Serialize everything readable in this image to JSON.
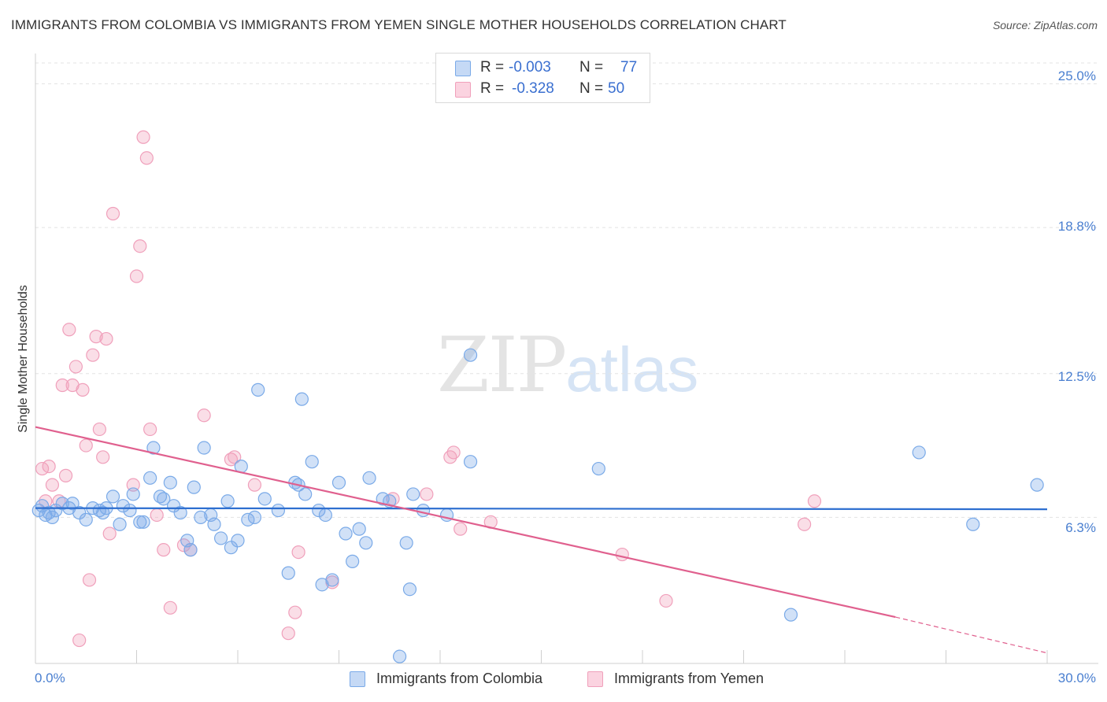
{
  "header": {
    "title": "IMMIGRANTS FROM COLOMBIA VS IMMIGRANTS FROM YEMEN SINGLE MOTHER HOUSEHOLDS CORRELATION CHART",
    "source": "Source: ZipAtlas.com"
  },
  "watermark": {
    "zip": "ZIP",
    "atlas": "atlas"
  },
  "stats": {
    "colombia": {
      "r_label": "R =",
      "r_value": "-0.003",
      "n_label": "N =",
      "n_value": "77"
    },
    "yemen": {
      "r_label": "R =",
      "r_value": "-0.328",
      "n_label": "N =",
      "n_value": "50"
    }
  },
  "colors": {
    "colombia": "#7aaae8",
    "yemen": "#f0a0bb",
    "colombia_line": "#2e6fd0",
    "yemen_line": "#e0608e",
    "tick_text": "#4a7fd0"
  },
  "chart_data": {
    "type": "scatter",
    "title": "IMMIGRANTS FROM COLOMBIA VS IMMIGRANTS FROM YEMEN SINGLE MOTHER HOUSEHOLDS CORRELATION CHART",
    "xlabel": "",
    "ylabel": "Single Mother Households",
    "xlim": [
      0,
      30
    ],
    "ylim": [
      0,
      25.9
    ],
    "x_tick_labels": [
      "0.0%",
      "30.0%"
    ],
    "y_ticks": [
      6.3,
      12.5,
      18.8,
      25.0
    ],
    "y_tick_labels": [
      "6.3%",
      "12.5%",
      "18.8%",
      "25.0%"
    ],
    "legend": [
      "Immigrants from Colombia",
      "Immigrants from Yemen"
    ],
    "series": [
      {
        "name": "Immigrants from Colombia",
        "trend": {
          "x": [
            0,
            30
          ],
          "y": [
            6.7,
            6.65
          ]
        },
        "points": [
          [
            0.1,
            6.6
          ],
          [
            0.2,
            6.8
          ],
          [
            0.3,
            6.4
          ],
          [
            0.4,
            6.5
          ],
          [
            0.5,
            6.3
          ],
          [
            0.6,
            6.6
          ],
          [
            0.8,
            6.9
          ],
          [
            1.0,
            6.7
          ],
          [
            1.1,
            6.9
          ],
          [
            1.3,
            6.5
          ],
          [
            1.5,
            6.2
          ],
          [
            1.7,
            6.7
          ],
          [
            1.9,
            6.6
          ],
          [
            2.0,
            6.5
          ],
          [
            2.1,
            6.7
          ],
          [
            2.3,
            7.2
          ],
          [
            2.5,
            6.0
          ],
          [
            2.6,
            6.8
          ],
          [
            2.8,
            6.6
          ],
          [
            2.9,
            7.3
          ],
          [
            3.1,
            6.1
          ],
          [
            3.2,
            6.1
          ],
          [
            3.4,
            8.0
          ],
          [
            3.5,
            9.3
          ],
          [
            3.7,
            7.2
          ],
          [
            3.8,
            7.1
          ],
          [
            4.0,
            7.8
          ],
          [
            4.1,
            6.8
          ],
          [
            4.3,
            6.5
          ],
          [
            4.5,
            5.3
          ],
          [
            4.6,
            4.9
          ],
          [
            4.7,
            7.6
          ],
          [
            4.9,
            6.3
          ],
          [
            5.0,
            9.3
          ],
          [
            5.2,
            6.4
          ],
          [
            5.3,
            6.0
          ],
          [
            5.5,
            5.4
          ],
          [
            5.7,
            7.0
          ],
          [
            5.8,
            5.0
          ],
          [
            6.0,
            5.3
          ],
          [
            6.1,
            8.5
          ],
          [
            6.3,
            6.2
          ],
          [
            6.5,
            6.3
          ],
          [
            6.6,
            11.8
          ],
          [
            6.8,
            7.1
          ],
          [
            7.2,
            6.6
          ],
          [
            7.5,
            3.9
          ],
          [
            7.7,
            7.8
          ],
          [
            7.8,
            7.7
          ],
          [
            7.9,
            11.4
          ],
          [
            8.0,
            7.3
          ],
          [
            8.2,
            8.7
          ],
          [
            8.4,
            6.6
          ],
          [
            8.5,
            3.4
          ],
          [
            8.6,
            6.4
          ],
          [
            8.8,
            3.6
          ],
          [
            9.0,
            7.8
          ],
          [
            9.2,
            5.6
          ],
          [
            9.4,
            4.4
          ],
          [
            9.6,
            5.8
          ],
          [
            9.8,
            5.2
          ],
          [
            9.9,
            8.0
          ],
          [
            10.3,
            7.1
          ],
          [
            10.5,
            7.0
          ],
          [
            10.8,
            0.3
          ],
          [
            11.0,
            5.2
          ],
          [
            11.1,
            3.2
          ],
          [
            11.2,
            7.3
          ],
          [
            11.5,
            6.6
          ],
          [
            12.2,
            6.4
          ],
          [
            12.9,
            13.3
          ],
          [
            12.9,
            8.7
          ],
          [
            16.7,
            8.4
          ],
          [
            22.4,
            2.1
          ],
          [
            26.2,
            9.1
          ],
          [
            27.8,
            6.0
          ],
          [
            29.7,
            7.7
          ]
        ]
      },
      {
        "name": "Immigrants from Yemen",
        "trend": {
          "x": [
            0,
            25.5
          ],
          "y": [
            10.2,
            2.0
          ],
          "dashed_to": [
            30,
            0.45
          ]
        },
        "points": [
          [
            0.2,
            8.4
          ],
          [
            0.3,
            7.0
          ],
          [
            0.4,
            8.5
          ],
          [
            0.5,
            7.7
          ],
          [
            0.7,
            7.0
          ],
          [
            0.8,
            12.0
          ],
          [
            0.9,
            8.1
          ],
          [
            1.0,
            14.4
          ],
          [
            1.1,
            12.0
          ],
          [
            1.2,
            12.8
          ],
          [
            1.3,
            1.0
          ],
          [
            1.4,
            11.8
          ],
          [
            1.5,
            9.4
          ],
          [
            1.6,
            3.6
          ],
          [
            1.7,
            13.3
          ],
          [
            1.8,
            14.1
          ],
          [
            1.9,
            10.1
          ],
          [
            2.0,
            8.9
          ],
          [
            2.1,
            14.0
          ],
          [
            2.2,
            5.6
          ],
          [
            2.3,
            19.4
          ],
          [
            2.9,
            7.7
          ],
          [
            3.0,
            16.7
          ],
          [
            3.1,
            18.0
          ],
          [
            3.2,
            22.7
          ],
          [
            3.3,
            21.8
          ],
          [
            3.4,
            10.1
          ],
          [
            3.6,
            6.4
          ],
          [
            3.8,
            4.9
          ],
          [
            4.0,
            2.4
          ],
          [
            4.4,
            5.1
          ],
          [
            4.6,
            4.9
          ],
          [
            5.0,
            10.7
          ],
          [
            5.8,
            8.8
          ],
          [
            5.9,
            8.9
          ],
          [
            6.5,
            7.7
          ],
          [
            7.5,
            1.3
          ],
          [
            7.7,
            2.2
          ],
          [
            7.8,
            4.8
          ],
          [
            8.8,
            3.5
          ],
          [
            10.6,
            7.1
          ],
          [
            11.6,
            7.3
          ],
          [
            12.3,
            8.9
          ],
          [
            12.4,
            9.1
          ],
          [
            12.6,
            5.8
          ],
          [
            13.5,
            6.1
          ],
          [
            17.4,
            4.7
          ],
          [
            18.7,
            2.7
          ],
          [
            22.8,
            6.0
          ],
          [
            23.1,
            7.0
          ]
        ]
      }
    ]
  }
}
